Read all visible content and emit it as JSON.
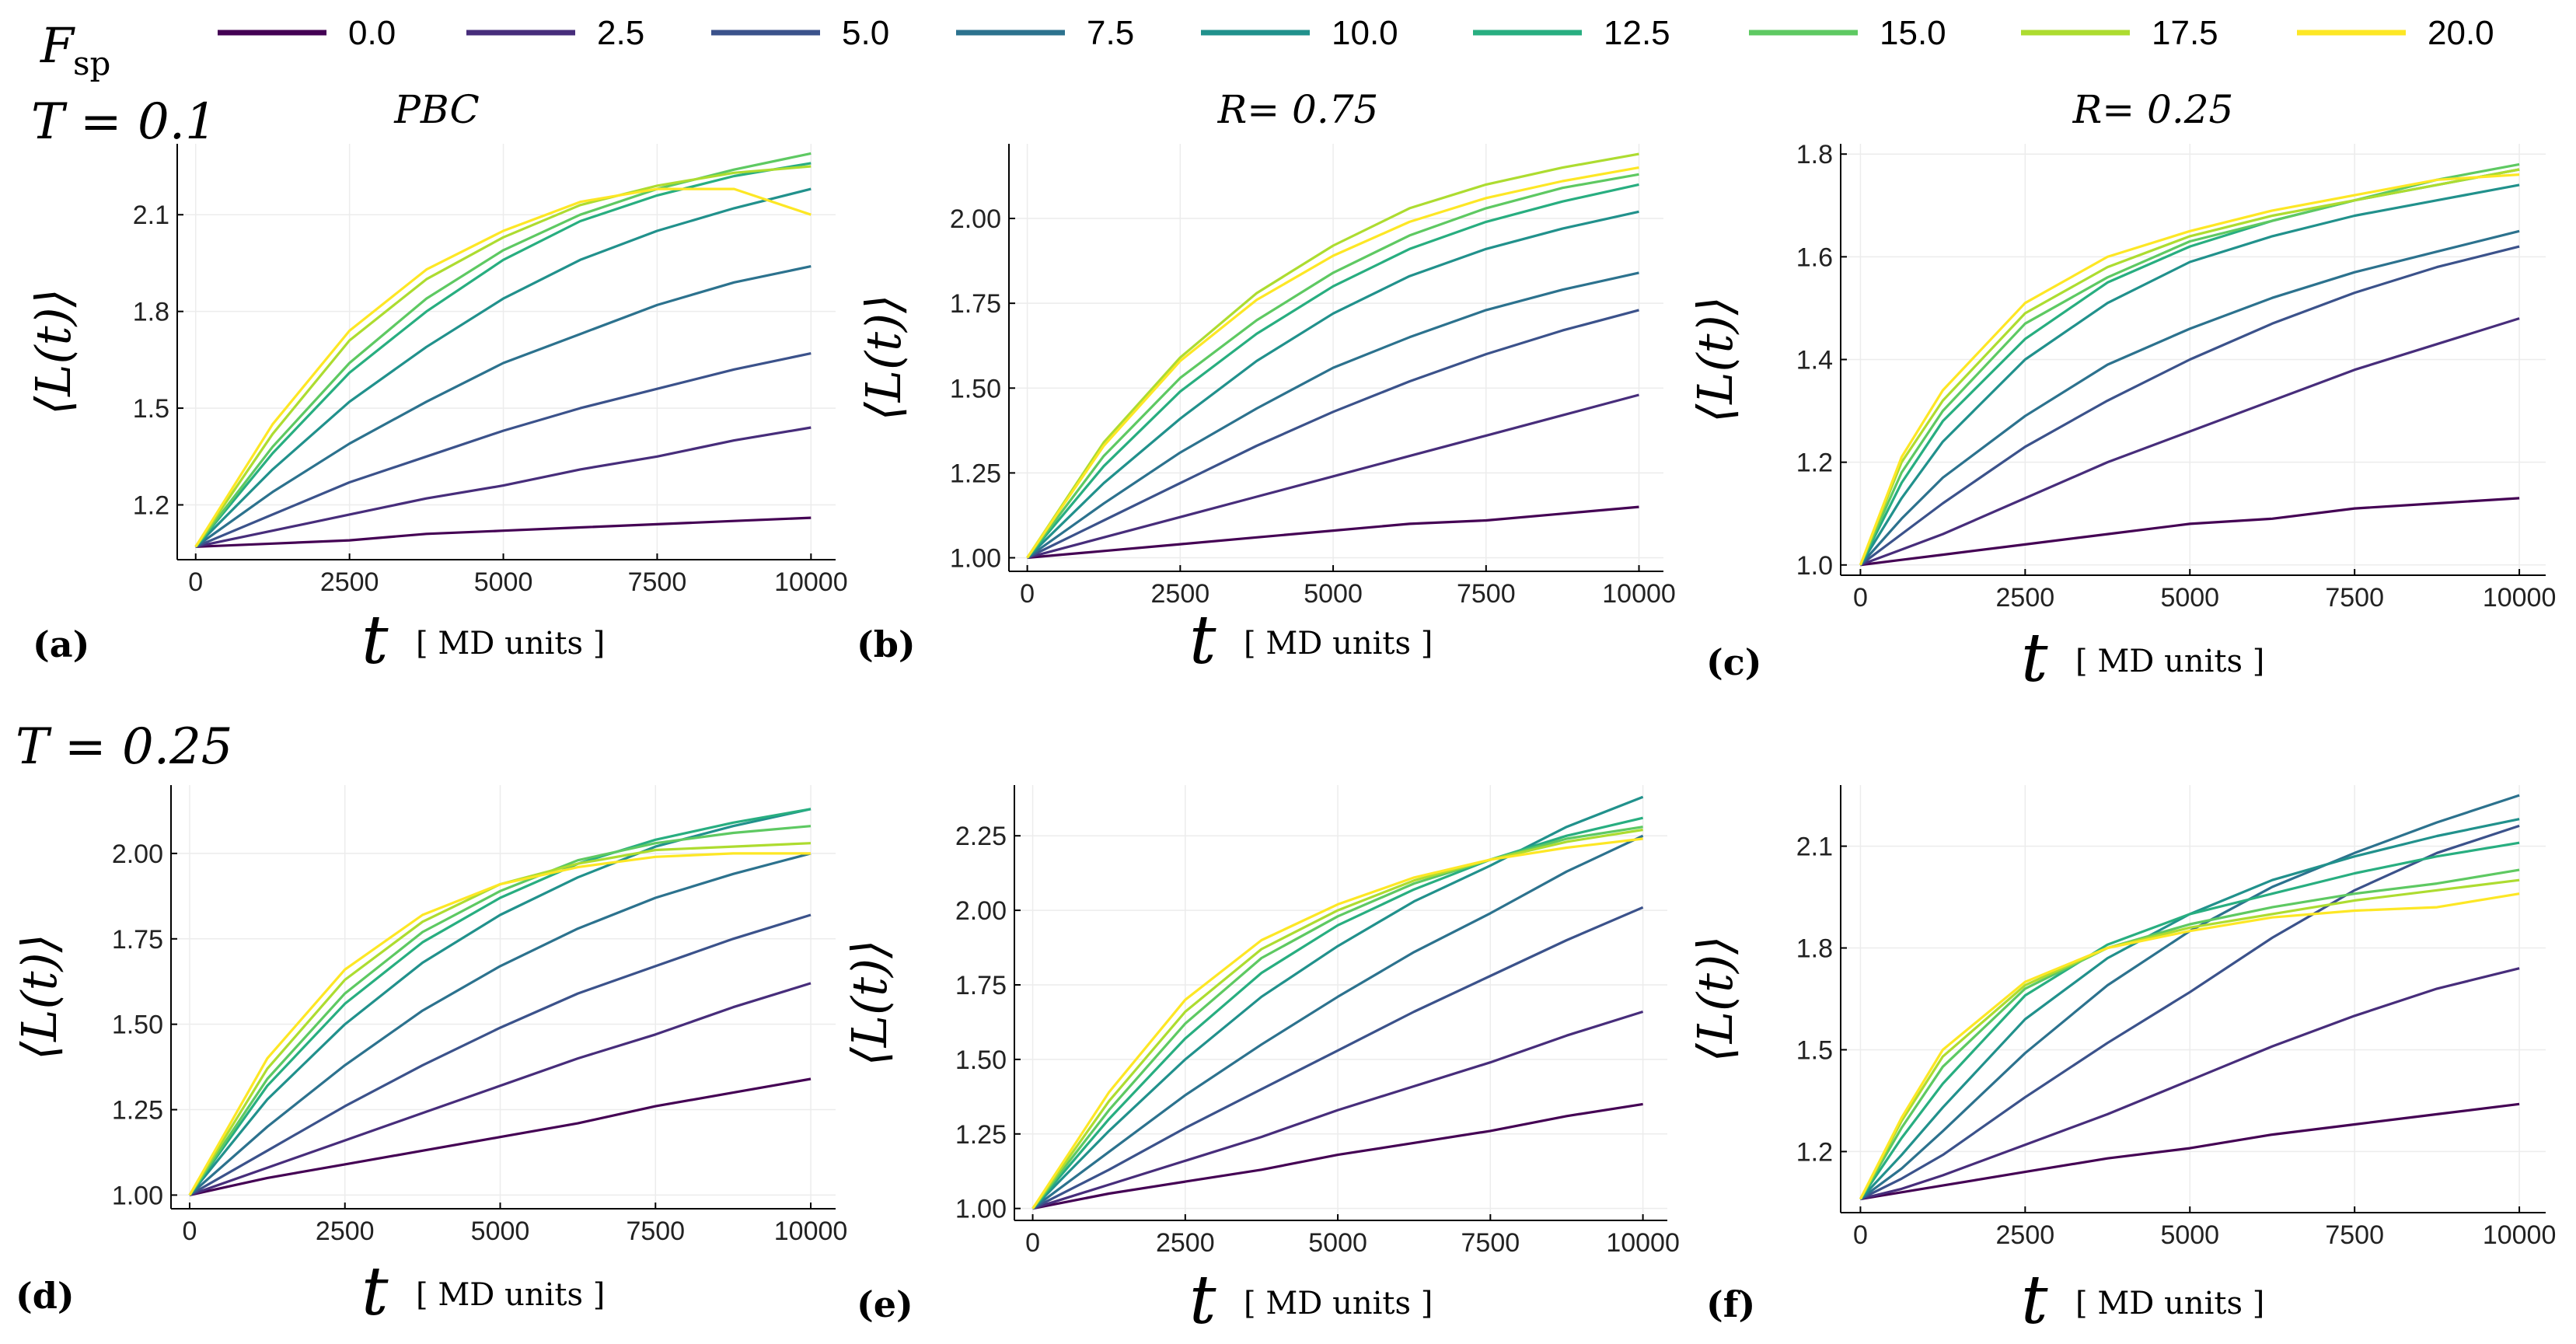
{
  "legend": {
    "title": "F",
    "title_sub": "sp",
    "entries": [
      "0.0",
      "2.5",
      "5.0",
      "7.5",
      "10.0",
      "12.5",
      "15.0",
      "17.5",
      "20.0"
    ],
    "colors": [
      "#440154",
      "#472d7b",
      "#3b528b",
      "#2c728e",
      "#21918c",
      "#28ae80",
      "#5ec962",
      "#addc30",
      "#fde725"
    ]
  },
  "row_labels": [
    "T = 0.1",
    "T = 0.25"
  ],
  "column_titles": [
    "PBC",
    "R= 0.75",
    "R= 0.25"
  ],
  "chart_data": [
    {
      "type": "line",
      "panel": "(a)",
      "row": "T = 0.1",
      "title": "PBC",
      "xlabel": "t",
      "xlabel_unit": "[ MD units ]",
      "ylabel": "⟨L(t)⟩",
      "xlim": [
        -300,
        10400
      ],
      "ylim": [
        1.03,
        2.32
      ],
      "xticks": [
        0,
        2500,
        5000,
        7500,
        10000
      ],
      "xtick_labels": [
        "0",
        "2500",
        "5000",
        "7500",
        "10000"
      ],
      "yticks": [
        1.2,
        1.5,
        1.8,
        2.1
      ],
      "ytick_labels": [
        "1.2",
        "1.5",
        "1.8",
        "2.1"
      ],
      "x": [
        0,
        1250,
        2500,
        3750,
        5000,
        6250,
        7500,
        8750,
        10000
      ],
      "series": [
        {
          "name": "0.0",
          "values": [
            1.07,
            1.08,
            1.09,
            1.11,
            1.12,
            1.13,
            1.14,
            1.15,
            1.16
          ]
        },
        {
          "name": "2.5",
          "values": [
            1.07,
            1.12,
            1.17,
            1.22,
            1.26,
            1.31,
            1.35,
            1.4,
            1.44
          ]
        },
        {
          "name": "5.0",
          "values": [
            1.07,
            1.17,
            1.27,
            1.35,
            1.43,
            1.5,
            1.56,
            1.62,
            1.67
          ]
        },
        {
          "name": "7.5",
          "values": [
            1.07,
            1.24,
            1.39,
            1.52,
            1.64,
            1.73,
            1.82,
            1.89,
            1.94
          ]
        },
        {
          "name": "10.0",
          "values": [
            1.07,
            1.31,
            1.52,
            1.69,
            1.84,
            1.96,
            2.05,
            2.12,
            2.18
          ]
        },
        {
          "name": "12.5",
          "values": [
            1.07,
            1.36,
            1.61,
            1.8,
            1.96,
            2.08,
            2.16,
            2.22,
            2.26
          ]
        },
        {
          "name": "15.0",
          "values": [
            1.07,
            1.38,
            1.64,
            1.84,
            1.99,
            2.1,
            2.18,
            2.24,
            2.29
          ]
        },
        {
          "name": "17.5",
          "values": [
            1.07,
            1.42,
            1.71,
            1.9,
            2.03,
            2.13,
            2.19,
            2.23,
            2.25
          ]
        },
        {
          "name": "20.0",
          "values": [
            1.07,
            1.45,
            1.74,
            1.93,
            2.05,
            2.14,
            2.18,
            2.18,
            2.1
          ]
        }
      ]
    },
    {
      "type": "line",
      "panel": "(b)",
      "row": "T = 0.1",
      "title": "R= 0.75",
      "xlabel": "t",
      "xlabel_unit": "[ MD units ]",
      "ylabel": "⟨L(t)⟩",
      "xlim": [
        -300,
        10400
      ],
      "ylim": [
        0.96,
        2.22
      ],
      "xticks": [
        0,
        2500,
        5000,
        7500,
        10000
      ],
      "xtick_labels": [
        "0",
        "2500",
        "5000",
        "7500",
        "10000"
      ],
      "yticks": [
        1.0,
        1.25,
        1.5,
        1.75,
        2.0
      ],
      "ytick_labels": [
        "1.00",
        "1.25",
        "1.50",
        "1.75",
        "2.00"
      ],
      "x": [
        0,
        1250,
        2500,
        3750,
        5000,
        6250,
        7500,
        8750,
        10000
      ],
      "series": [
        {
          "name": "0.0",
          "values": [
            1.0,
            1.02,
            1.04,
            1.06,
            1.08,
            1.1,
            1.11,
            1.13,
            1.15
          ]
        },
        {
          "name": "2.5",
          "values": [
            1.0,
            1.06,
            1.12,
            1.18,
            1.24,
            1.3,
            1.36,
            1.42,
            1.48
          ]
        },
        {
          "name": "5.0",
          "values": [
            1.0,
            1.11,
            1.22,
            1.33,
            1.43,
            1.52,
            1.6,
            1.67,
            1.73
          ]
        },
        {
          "name": "7.5",
          "values": [
            1.0,
            1.16,
            1.31,
            1.44,
            1.56,
            1.65,
            1.73,
            1.79,
            1.84
          ]
        },
        {
          "name": "10.0",
          "values": [
            1.0,
            1.22,
            1.41,
            1.58,
            1.72,
            1.83,
            1.91,
            1.97,
            2.02
          ]
        },
        {
          "name": "12.5",
          "values": [
            1.0,
            1.27,
            1.49,
            1.66,
            1.8,
            1.91,
            1.99,
            2.05,
            2.1
          ]
        },
        {
          "name": "15.0",
          "values": [
            1.0,
            1.3,
            1.53,
            1.7,
            1.84,
            1.95,
            2.03,
            2.09,
            2.13
          ]
        },
        {
          "name": "17.5",
          "values": [
            1.0,
            1.34,
            1.59,
            1.78,
            1.92,
            2.03,
            2.1,
            2.15,
            2.19
          ]
        },
        {
          "name": "20.0",
          "values": [
            1.0,
            1.33,
            1.58,
            1.76,
            1.89,
            1.99,
            2.06,
            2.11,
            2.15
          ]
        }
      ]
    },
    {
      "type": "line",
      "panel": "(c)",
      "row": "T = 0.1",
      "title": "R= 0.25",
      "xlabel": "t",
      "xlabel_unit": "[ MD units ]",
      "ylabel": "⟨L(t)⟩",
      "xlim": [
        -300,
        10400
      ],
      "ylim": [
        0.98,
        1.82
      ],
      "xticks": [
        0,
        2500,
        5000,
        7500,
        10000
      ],
      "xtick_labels": [
        "0",
        "2500",
        "5000",
        "7500",
        "10000"
      ],
      "yticks": [
        1.0,
        1.2,
        1.4,
        1.6,
        1.8
      ],
      "ytick_labels": [
        "1.0",
        "1.2",
        "1.4",
        "1.6",
        "1.8"
      ],
      "x": [
        0,
        625,
        1250,
        2500,
        3750,
        5000,
        6250,
        7500,
        8750,
        10000
      ],
      "series": [
        {
          "name": "0.0",
          "values": [
            1.0,
            1.01,
            1.02,
            1.04,
            1.06,
            1.08,
            1.09,
            1.11,
            1.12,
            1.13
          ]
        },
        {
          "name": "2.5",
          "values": [
            1.0,
            1.03,
            1.06,
            1.13,
            1.2,
            1.26,
            1.32,
            1.38,
            1.43,
            1.48
          ]
        },
        {
          "name": "5.0",
          "values": [
            1.0,
            1.06,
            1.12,
            1.23,
            1.32,
            1.4,
            1.47,
            1.53,
            1.58,
            1.62
          ]
        },
        {
          "name": "7.5",
          "values": [
            1.0,
            1.09,
            1.17,
            1.29,
            1.39,
            1.46,
            1.52,
            1.57,
            1.61,
            1.65
          ]
        },
        {
          "name": "10.0",
          "values": [
            1.0,
            1.13,
            1.24,
            1.4,
            1.51,
            1.59,
            1.64,
            1.68,
            1.71,
            1.74
          ]
        },
        {
          "name": "12.5",
          "values": [
            1.0,
            1.16,
            1.28,
            1.44,
            1.55,
            1.62,
            1.67,
            1.71,
            1.74,
            1.77
          ]
        },
        {
          "name": "15.0",
          "values": [
            1.0,
            1.18,
            1.3,
            1.47,
            1.56,
            1.63,
            1.67,
            1.71,
            1.75,
            1.78
          ]
        },
        {
          "name": "17.5",
          "values": [
            1.0,
            1.2,
            1.32,
            1.49,
            1.58,
            1.64,
            1.68,
            1.71,
            1.74,
            1.77
          ]
        },
        {
          "name": "20.0",
          "values": [
            1.0,
            1.21,
            1.34,
            1.51,
            1.6,
            1.65,
            1.69,
            1.72,
            1.75,
            1.76
          ]
        }
      ]
    },
    {
      "type": "line",
      "panel": "(d)",
      "row": "T = 0.25",
      "title": "",
      "xlabel": "t",
      "xlabel_unit": "[ MD units ]",
      "ylabel": "⟨L(t)⟩",
      "xlim": [
        -300,
        10400
      ],
      "ylim": [
        0.96,
        2.2
      ],
      "xticks": [
        0,
        2500,
        5000,
        7500,
        10000
      ],
      "xtick_labels": [
        "0",
        "2500",
        "5000",
        "7500",
        "10000"
      ],
      "yticks": [
        1.0,
        1.25,
        1.5,
        1.75,
        2.0
      ],
      "ytick_labels": [
        "1.00",
        "1.25",
        "1.50",
        "1.75",
        "2.00"
      ],
      "x": [
        0,
        1250,
        2500,
        3750,
        5000,
        6250,
        7500,
        8750,
        10000
      ],
      "series": [
        {
          "name": "0.0",
          "values": [
            1.0,
            1.05,
            1.09,
            1.13,
            1.17,
            1.21,
            1.26,
            1.3,
            1.34
          ]
        },
        {
          "name": "2.5",
          "values": [
            1.0,
            1.08,
            1.16,
            1.24,
            1.32,
            1.4,
            1.47,
            1.55,
            1.62
          ]
        },
        {
          "name": "5.0",
          "values": [
            1.0,
            1.13,
            1.26,
            1.38,
            1.49,
            1.59,
            1.67,
            1.75,
            1.82
          ]
        },
        {
          "name": "7.5",
          "values": [
            1.0,
            1.2,
            1.38,
            1.54,
            1.67,
            1.78,
            1.87,
            1.94,
            2.0
          ]
        },
        {
          "name": "10.0",
          "values": [
            1.0,
            1.28,
            1.5,
            1.68,
            1.82,
            1.93,
            2.02,
            2.08,
            2.13
          ]
        },
        {
          "name": "12.5",
          "values": [
            1.0,
            1.32,
            1.56,
            1.74,
            1.87,
            1.97,
            2.04,
            2.09,
            2.13
          ]
        },
        {
          "name": "15.0",
          "values": [
            1.0,
            1.34,
            1.59,
            1.77,
            1.89,
            1.98,
            2.03,
            2.06,
            2.08
          ]
        },
        {
          "name": "17.5",
          "values": [
            1.0,
            1.37,
            1.63,
            1.8,
            1.91,
            1.97,
            2.01,
            2.02,
            2.03
          ]
        },
        {
          "name": "20.0",
          "values": [
            1.0,
            1.4,
            1.66,
            1.82,
            1.91,
            1.96,
            1.99,
            2.0,
            2.0
          ]
        }
      ]
    },
    {
      "type": "line",
      "panel": "(e)",
      "row": "T = 0.25",
      "title": "",
      "xlabel": "t",
      "xlabel_unit": "[ MD units ]",
      "ylabel": "⟨L(t)⟩",
      "xlim": [
        -300,
        10400
      ],
      "ylim": [
        0.96,
        2.42
      ],
      "xticks": [
        0,
        2500,
        5000,
        7500,
        10000
      ],
      "xtick_labels": [
        "0",
        "2500",
        "5000",
        "7500",
        "10000"
      ],
      "yticks": [
        1.0,
        1.25,
        1.5,
        1.75,
        2.0,
        2.25
      ],
      "ytick_labels": [
        "1.00",
        "1.25",
        "1.50",
        "1.75",
        "2.00",
        "2.25"
      ],
      "x": [
        0,
        1250,
        2500,
        3750,
        5000,
        6250,
        7500,
        8750,
        10000
      ],
      "series": [
        {
          "name": "0.0",
          "values": [
            1.0,
            1.05,
            1.09,
            1.13,
            1.18,
            1.22,
            1.26,
            1.31,
            1.35
          ]
        },
        {
          "name": "2.5",
          "values": [
            1.0,
            1.08,
            1.16,
            1.24,
            1.33,
            1.41,
            1.49,
            1.58,
            1.66
          ]
        },
        {
          "name": "5.0",
          "values": [
            1.0,
            1.13,
            1.27,
            1.4,
            1.53,
            1.66,
            1.78,
            1.9,
            2.01
          ]
        },
        {
          "name": "7.5",
          "values": [
            1.0,
            1.19,
            1.38,
            1.55,
            1.71,
            1.86,
            1.99,
            2.13,
            2.25
          ]
        },
        {
          "name": "10.0",
          "values": [
            1.0,
            1.26,
            1.5,
            1.71,
            1.88,
            2.03,
            2.15,
            2.28,
            2.38
          ]
        },
        {
          "name": "12.5",
          "values": [
            1.0,
            1.3,
            1.57,
            1.79,
            1.95,
            2.07,
            2.17,
            2.25,
            2.31
          ]
        },
        {
          "name": "15.0",
          "values": [
            1.0,
            1.33,
            1.62,
            1.84,
            1.98,
            2.09,
            2.17,
            2.24,
            2.28
          ]
        },
        {
          "name": "17.5",
          "values": [
            1.0,
            1.36,
            1.66,
            1.87,
            2.0,
            2.1,
            2.17,
            2.23,
            2.27
          ]
        },
        {
          "name": "20.0",
          "values": [
            1.0,
            1.39,
            1.7,
            1.9,
            2.02,
            2.11,
            2.17,
            2.21,
            2.24
          ]
        }
      ]
    },
    {
      "type": "line",
      "panel": "(f)",
      "row": "T = 0.25",
      "title": "",
      "xlabel": "t",
      "xlabel_unit": "[ MD units ]",
      "ylabel": "⟨L(t)⟩",
      "xlim": [
        -300,
        10400
      ],
      "ylim": [
        1.02,
        2.28
      ],
      "xticks": [
        0,
        2500,
        5000,
        7500,
        10000
      ],
      "xtick_labels": [
        "0",
        "2500",
        "5000",
        "7500",
        "10000"
      ],
      "yticks": [
        1.2,
        1.5,
        1.8,
        2.1
      ],
      "ytick_labels": [
        "1.2",
        "1.5",
        "1.8",
        "2.1"
      ],
      "x": [
        0,
        625,
        1250,
        2500,
        3750,
        5000,
        6250,
        7500,
        8750,
        10000
      ],
      "series": [
        {
          "name": "0.0",
          "values": [
            1.06,
            1.08,
            1.1,
            1.14,
            1.18,
            1.21,
            1.25,
            1.28,
            1.31,
            1.34
          ]
        },
        {
          "name": "2.5",
          "values": [
            1.06,
            1.09,
            1.13,
            1.22,
            1.31,
            1.41,
            1.51,
            1.6,
            1.68,
            1.74
          ]
        },
        {
          "name": "5.0",
          "values": [
            1.06,
            1.12,
            1.19,
            1.36,
            1.52,
            1.67,
            1.83,
            1.97,
            2.08,
            2.16
          ]
        },
        {
          "name": "7.5",
          "values": [
            1.06,
            1.15,
            1.26,
            1.49,
            1.69,
            1.85,
            1.98,
            2.08,
            2.17,
            2.25
          ]
        },
        {
          "name": "10.0",
          "values": [
            1.06,
            1.19,
            1.33,
            1.59,
            1.77,
            1.9,
            2.0,
            2.07,
            2.13,
            2.18
          ]
        },
        {
          "name": "12.5",
          "values": [
            1.06,
            1.24,
            1.4,
            1.66,
            1.81,
            1.9,
            1.96,
            2.02,
            2.07,
            2.11
          ]
        },
        {
          "name": "15.0",
          "values": [
            1.06,
            1.27,
            1.45,
            1.68,
            1.8,
            1.87,
            1.92,
            1.96,
            1.99,
            2.03
          ]
        },
        {
          "name": "17.5",
          "values": [
            1.06,
            1.29,
            1.48,
            1.69,
            1.8,
            1.86,
            1.9,
            1.94,
            1.97,
            2.0
          ]
        },
        {
          "name": "20.0",
          "values": [
            1.06,
            1.3,
            1.5,
            1.7,
            1.8,
            1.85,
            1.89,
            1.91,
            1.92,
            1.96
          ]
        }
      ]
    }
  ]
}
